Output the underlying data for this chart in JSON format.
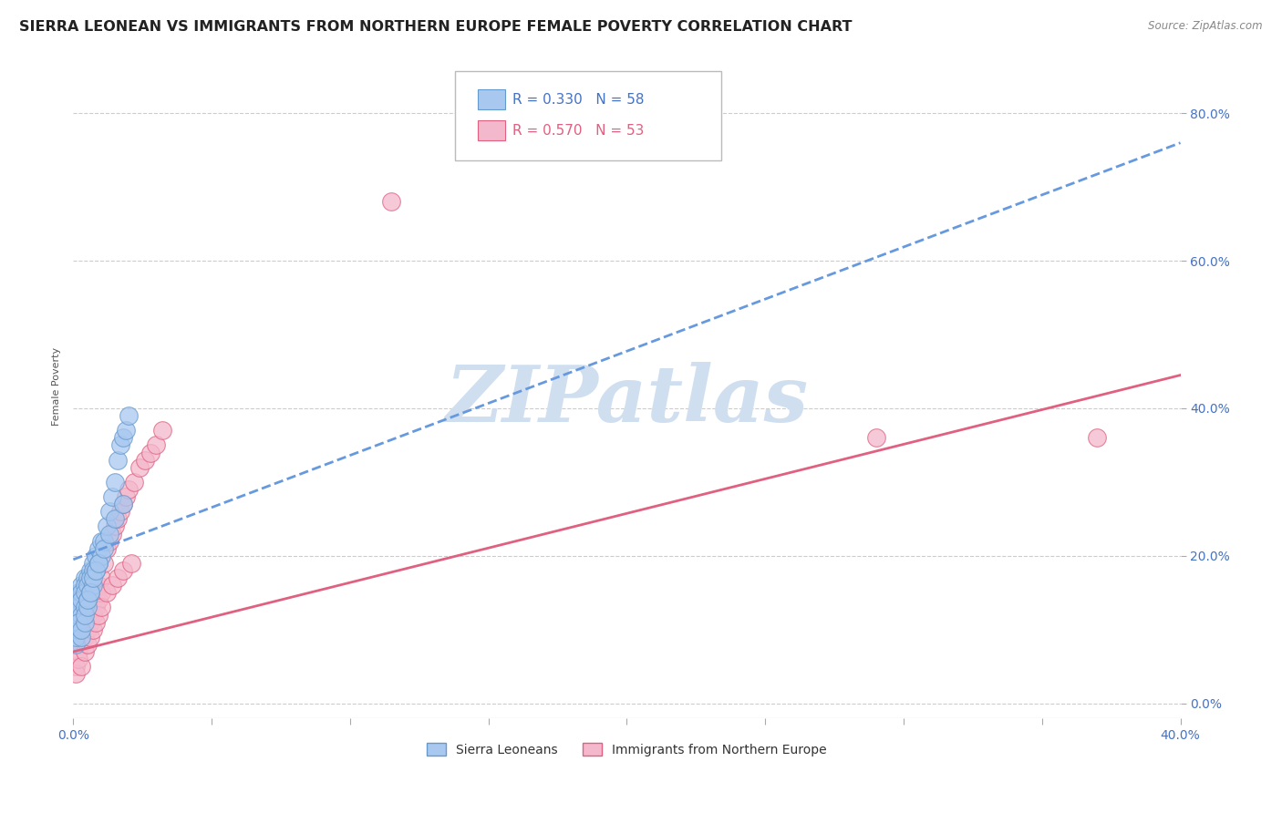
{
  "title": "SIERRA LEONEAN VS IMMIGRANTS FROM NORTHERN EUROPE FEMALE POVERTY CORRELATION CHART",
  "source": "Source: ZipAtlas.com",
  "ylabel": "Female Poverty",
  "xlim": [
    0.0,
    0.4
  ],
  "ylim": [
    -0.02,
    0.88
  ],
  "xticks": [
    0.0,
    0.05,
    0.1,
    0.15,
    0.2,
    0.25,
    0.3,
    0.35,
    0.4
  ],
  "xtick_labels_show": [
    "0.0%",
    "",
    "",
    "",
    "",
    "",
    "",
    "",
    "40.0%"
  ],
  "yticks": [
    0.0,
    0.2,
    0.4,
    0.6,
    0.8
  ],
  "ytick_labels": [
    "0.0%",
    "20.0%",
    "40.0%",
    "60.0%",
    "80.0%"
  ],
  "background_color": "#ffffff",
  "grid_color": "#cccccc",
  "watermark": "ZIPatlas",
  "series": [
    {
      "name": "Sierra Leoneans",
      "R": 0.33,
      "N": 58,
      "color": "#a8c8f0",
      "edge_color": "#6699cc",
      "trend_color": "#6699dd",
      "trend_style": "--",
      "x": [
        0.001,
        0.001,
        0.001,
        0.002,
        0.002,
        0.002,
        0.002,
        0.003,
        0.003,
        0.003,
        0.003,
        0.004,
        0.004,
        0.004,
        0.004,
        0.005,
        0.005,
        0.005,
        0.006,
        0.006,
        0.006,
        0.007,
        0.007,
        0.007,
        0.008,
        0.008,
        0.009,
        0.009,
        0.01,
        0.01,
        0.011,
        0.012,
        0.013,
        0.014,
        0.015,
        0.016,
        0.017,
        0.018,
        0.019,
        0.02,
        0.001,
        0.001,
        0.002,
        0.002,
        0.003,
        0.003,
        0.004,
        0.004,
        0.005,
        0.005,
        0.006,
        0.007,
        0.008,
        0.009,
        0.011,
        0.013,
        0.015,
        0.018
      ],
      "y": [
        0.14,
        0.13,
        0.12,
        0.15,
        0.14,
        0.13,
        0.11,
        0.16,
        0.15,
        0.14,
        0.12,
        0.17,
        0.16,
        0.15,
        0.13,
        0.17,
        0.16,
        0.14,
        0.18,
        0.17,
        0.15,
        0.19,
        0.18,
        0.16,
        0.2,
        0.18,
        0.21,
        0.19,
        0.22,
        0.2,
        0.22,
        0.24,
        0.26,
        0.28,
        0.3,
        0.33,
        0.35,
        0.36,
        0.37,
        0.39,
        0.08,
        0.09,
        0.1,
        0.11,
        0.09,
        0.1,
        0.11,
        0.12,
        0.13,
        0.14,
        0.15,
        0.17,
        0.18,
        0.19,
        0.21,
        0.23,
        0.25,
        0.27
      ],
      "trend_x": [
        0.0,
        0.4
      ],
      "trend_y": [
        0.195,
        0.76
      ]
    },
    {
      "name": "Immigrants from Northern Europe",
      "R": 0.57,
      "N": 53,
      "color": "#f4b8cc",
      "edge_color": "#e06080",
      "trend_color": "#e06080",
      "trend_style": "-",
      "x": [
        0.001,
        0.002,
        0.002,
        0.003,
        0.003,
        0.004,
        0.004,
        0.005,
        0.005,
        0.006,
        0.006,
        0.007,
        0.007,
        0.008,
        0.008,
        0.009,
        0.009,
        0.01,
        0.01,
        0.011,
        0.012,
        0.013,
        0.014,
        0.015,
        0.016,
        0.017,
        0.018,
        0.019,
        0.02,
        0.022,
        0.024,
        0.026,
        0.028,
        0.03,
        0.032,
        0.001,
        0.002,
        0.003,
        0.004,
        0.005,
        0.006,
        0.007,
        0.008,
        0.009,
        0.01,
        0.012,
        0.014,
        0.016,
        0.018,
        0.021,
        0.115,
        0.29,
        0.37
      ],
      "y": [
        0.05,
        0.07,
        0.09,
        0.08,
        0.1,
        0.09,
        0.11,
        0.1,
        0.12,
        0.11,
        0.13,
        0.12,
        0.14,
        0.13,
        0.15,
        0.14,
        0.16,
        0.15,
        0.17,
        0.19,
        0.21,
        0.22,
        0.23,
        0.24,
        0.25,
        0.26,
        0.27,
        0.28,
        0.29,
        0.3,
        0.32,
        0.33,
        0.34,
        0.35,
        0.37,
        0.04,
        0.06,
        0.05,
        0.07,
        0.08,
        0.09,
        0.1,
        0.11,
        0.12,
        0.13,
        0.15,
        0.16,
        0.17,
        0.18,
        0.19,
        0.68,
        0.36,
        0.36
      ],
      "trend_x": [
        0.0,
        0.4
      ],
      "trend_y": [
        0.07,
        0.445
      ]
    }
  ],
  "legend_R1": "R = 0.330",
  "legend_N1": "N = 58",
  "legend_R2": "R = 0.570",
  "legend_N2": "N = 53",
  "title_fontsize": 11.5,
  "axis_label_fontsize": 8,
  "tick_fontsize": 10,
  "tick_color": "#4472c4",
  "watermark_color": "#d0dff0",
  "watermark_fontsize": 62
}
